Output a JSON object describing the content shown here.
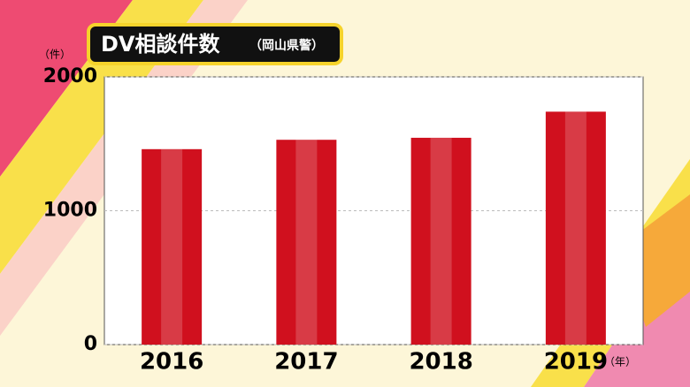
{
  "chart_data": {
    "type": "bar",
    "title": "DV相談件数",
    "subtitle": "（岡山県警）",
    "y_unit": "（件）",
    "x_unit": "（年）",
    "categories": [
      "2016",
      "2017",
      "2018",
      "2019"
    ],
    "values": [
      1460,
      1530,
      1545,
      1740
    ],
    "color": "#d0101e",
    "ylim": [
      0,
      2000
    ],
    "yticks": [
      0,
      1000,
      2000
    ],
    "grid": true
  }
}
